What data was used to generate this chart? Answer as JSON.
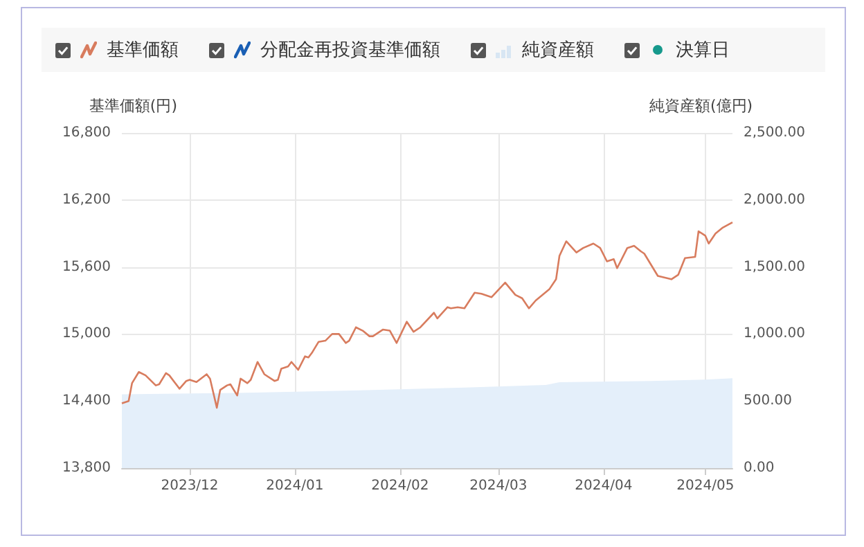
{
  "chart_data": {
    "type": "line",
    "xlim": [
      "2023-11-11",
      "2024-05-09"
    ],
    "xticks": [
      {
        "value": "2023-12-01",
        "label": "2023/12"
      },
      {
        "value": "2024-01-01",
        "label": "2024/01"
      },
      {
        "value": "2024-02-01",
        "label": "2024/02"
      },
      {
        "value": "2024-03-01",
        "label": "2024/03"
      },
      {
        "value": "2024-04-01",
        "label": "2024/04"
      },
      {
        "value": "2024-05-01",
        "label": "2024/05"
      }
    ],
    "ylabel": "基準価額(円)",
    "y2label": "純資産額(億円)",
    "ylim": [
      13800,
      16800
    ],
    "yticks": [
      {
        "value": 13800,
        "label": "13,800"
      },
      {
        "value": 14400,
        "label": "14,400"
      },
      {
        "value": 15000,
        "label": "15,000"
      },
      {
        "value": 15600,
        "label": "15,600"
      },
      {
        "value": 16200,
        "label": "16,200"
      },
      {
        "value": 16800,
        "label": "16,800"
      }
    ],
    "y2lim": [
      0,
      2500
    ],
    "y2ticks": [
      {
        "value": 0,
        "label": "0.00"
      },
      {
        "value": 500,
        "label": "500.00"
      },
      {
        "value": 1000,
        "label": "1,000.00"
      },
      {
        "value": 1500,
        "label": "1,500.00"
      },
      {
        "value": 2000,
        "label": "2,000.00"
      },
      {
        "value": 2500,
        "label": "2,500.00"
      }
    ],
    "grid": true,
    "legend": "top",
    "marker": "none",
    "series": [
      {
        "name": "基準価額",
        "color": "#d87c5e",
        "x": [
          "2023-11-11",
          "2023-11-13",
          "2023-11-14",
          "2023-11-16",
          "2023-11-18",
          "2023-11-21",
          "2023-11-22",
          "2023-11-24",
          "2023-11-25",
          "2023-11-28",
          "2023-11-30",
          "2023-12-01",
          "2023-12-03",
          "2023-12-06",
          "2023-12-07",
          "2023-12-09",
          "2023-12-10",
          "2023-12-12",
          "2023-12-13",
          "2023-12-15",
          "2023-12-16",
          "2023-12-18",
          "2023-12-19",
          "2023-12-21",
          "2023-12-23",
          "2023-12-26",
          "2023-12-27",
          "2023-12-28",
          "2023-12-30",
          "2023-12-31",
          "2024-01-02",
          "2024-01-04",
          "2024-01-05",
          "2024-01-06",
          "2024-01-08",
          "2024-01-10",
          "2024-01-12",
          "2024-01-14",
          "2024-01-16",
          "2024-01-17",
          "2024-01-19",
          "2024-01-21",
          "2024-01-23",
          "2024-01-24",
          "2024-01-27",
          "2024-01-29",
          "2024-01-31",
          "2024-02-03",
          "2024-02-05",
          "2024-02-07",
          "2024-02-11",
          "2024-02-12",
          "2024-02-15",
          "2024-02-16",
          "2024-02-18",
          "2024-02-20",
          "2024-02-23",
          "2024-02-25",
          "2024-02-28",
          "2024-03-03",
          "2024-03-06",
          "2024-03-08",
          "2024-03-10",
          "2024-03-12",
          "2024-03-16",
          "2024-03-18",
          "2024-03-19",
          "2024-03-21",
          "2024-03-24",
          "2024-03-26",
          "2024-03-29",
          "2024-03-31",
          "2024-04-02",
          "2024-04-04",
          "2024-04-05",
          "2024-04-08",
          "2024-04-10",
          "2024-04-12",
          "2024-04-13",
          "2024-04-17",
          "2024-04-21",
          "2024-04-23",
          "2024-04-25",
          "2024-04-28",
          "2024-04-29",
          "2024-05-01",
          "2024-05-02",
          "2024-05-04",
          "2024-05-06",
          "2024-05-09"
        ],
        "values": [
          14380,
          14400,
          14560,
          14660,
          14630,
          14540,
          14550,
          14650,
          14630,
          14510,
          14580,
          14590,
          14570,
          14640,
          14600,
          14340,
          14500,
          14540,
          14550,
          14450,
          14600,
          14560,
          14590,
          14750,
          14640,
          14580,
          14590,
          14690,
          14710,
          14750,
          14680,
          14800,
          14790,
          14830,
          14930,
          14940,
          15000,
          15000,
          14920,
          14940,
          15060,
          15030,
          14980,
          14980,
          15040,
          15030,
          14920,
          15110,
          15020,
          15060,
          15190,
          15140,
          15240,
          15230,
          15240,
          15230,
          15370,
          15360,
          15330,
          15460,
          15350,
          15320,
          15230,
          15300,
          15400,
          15490,
          15700,
          15830,
          15730,
          15770,
          15810,
          15770,
          15650,
          15670,
          15590,
          15770,
          15790,
          15740,
          15720,
          15520,
          15490,
          15530,
          15680,
          15690,
          15920,
          15880,
          15810,
          15900,
          15950,
          16000
        ]
      },
      {
        "name": "分配金再投資基準価額",
        "type": "line",
        "color": "#1a5fb4"
      },
      {
        "name": "純資産額",
        "type": "area",
        "axis": "y2",
        "color": "#e4effa",
        "x": [
          "2023-11-11",
          "2023-12-15",
          "2024-01-20",
          "2024-02-20",
          "2024-03-15",
          "2024-03-19",
          "2024-04-15",
          "2024-05-01",
          "2024-05-09"
        ],
        "values": [
          550,
          560,
          580,
          600,
          620,
          640,
          650,
          660,
          670
        ]
      },
      {
        "name": "決算日",
        "type": "scatter",
        "color": "#16998c"
      }
    ]
  }
}
